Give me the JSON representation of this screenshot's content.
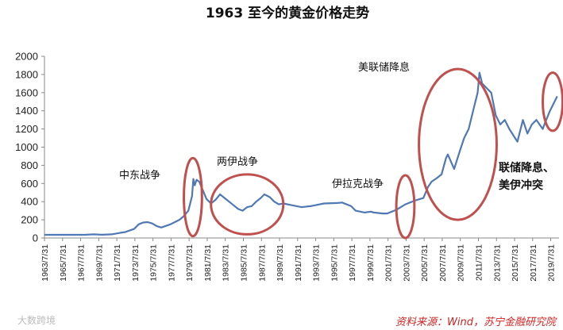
{
  "chart_data": {
    "type": "line",
    "title": "1963 至今的黄金价格走势",
    "ylim": [
      0,
      2000
    ],
    "yticks": [
      0,
      200,
      400,
      600,
      800,
      1000,
      1200,
      1400,
      1600,
      1800,
      2000
    ],
    "xlim": [
      1963.58,
      2020.5
    ],
    "xticks": [
      "1963/7/31",
      "1965/7/31",
      "1967/7/31",
      "1969/7/31",
      "1971/7/31",
      "1973/7/31",
      "1975/7/31",
      "1977/7/31",
      "1979/7/31",
      "1981/7/31",
      "1983/7/31",
      "1985/7/31",
      "1987/7/31",
      "1989/7/31",
      "1991/7/31",
      "1993/7/31",
      "1995/7/31",
      "1997/7/31",
      "1999/7/31",
      "2001/7/31",
      "2003/7/31",
      "2005/7/31",
      "2007/7/31",
      "2009/7/31",
      "2011/7/31",
      "2013/7/31",
      "2015/7/31",
      "2017/7/31",
      "2019/7/31"
    ],
    "grid": false,
    "line_color": "#4f78b4",
    "series": [
      {
        "x": [
          1963.6,
          1968.0,
          1969.0,
          1970.0,
          1971.0,
          1972.0,
          1972.5,
          1973.5,
          1974.0,
          1974.5,
          1975.0,
          1975.5,
          1976.0,
          1976.5,
          1977.5,
          1978.5,
          1979.0,
          1979.5,
          1979.9,
          1980.05,
          1980.2,
          1980.4,
          1980.7,
          1981.0,
          1981.5,
          1982.0,
          1982.5,
          1983.0,
          1983.5,
          1984.0,
          1984.5,
          1985.0,
          1985.5,
          1986.0,
          1986.5,
          1987.0,
          1987.5,
          1987.9,
          1988.5,
          1989.0,
          1989.5,
          1990.0,
          1991.0,
          1992.0,
          1993.0,
          1993.5,
          1994.5,
          1996.0,
          1996.5,
          1997.5,
          1998.0,
          1999.0,
          1999.7,
          2000.0,
          2001.0,
          2001.5,
          2002.5,
          2003.5,
          2004.5,
          2005.5,
          2006.0,
          2006.4,
          2007.0,
          2007.5,
          2008.0,
          2008.2,
          2008.9,
          2009.5,
          2010.0,
          2010.5,
          2011.0,
          2011.5,
          2011.7,
          2012.0,
          2012.5,
          2013.0,
          2013.5,
          2014.0,
          2014.5,
          2015.0,
          2015.9,
          2016.5,
          2017.0,
          2017.5,
          2018.0,
          2018.7,
          2019.0,
          2019.5,
          2020.0,
          2020.3
        ],
        "values": [
          35,
          35,
          40,
          36,
          40,
          58,
          65,
          100,
          150,
          170,
          175,
          160,
          130,
          115,
          150,
          200,
          240,
          300,
          460,
          650,
          580,
          640,
          620,
          550,
          430,
          380,
          420,
          480,
          440,
          400,
          360,
          320,
          300,
          340,
          350,
          400,
          440,
          480,
          450,
          400,
          370,
          380,
          360,
          340,
          350,
          360,
          380,
          385,
          390,
          350,
          300,
          280,
          290,
          280,
          270,
          270,
          310,
          370,
          410,
          440,
          560,
          620,
          660,
          700,
          880,
          920,
          760,
          950,
          1100,
          1200,
          1400,
          1600,
          1820,
          1700,
          1650,
          1600,
          1350,
          1250,
          1300,
          1200,
          1060,
          1300,
          1150,
          1250,
          1300,
          1200,
          1280,
          1400,
          1500,
          1560
        ]
      }
    ],
    "annotations": [
      {
        "text": "中东战争"
      },
      {
        "text": "两伊战争"
      },
      {
        "text": "伊拉克战争"
      },
      {
        "text": "美联储降息"
      },
      {
        "text": "联储降息、",
        "bold": true
      },
      {
        "text": "美伊冲突",
        "bold": true
      }
    ],
    "highlight_color": "#c0504d",
    "source": "资料来源：Wind，苏宁金融研究院",
    "watermark": "大数跨境"
  }
}
